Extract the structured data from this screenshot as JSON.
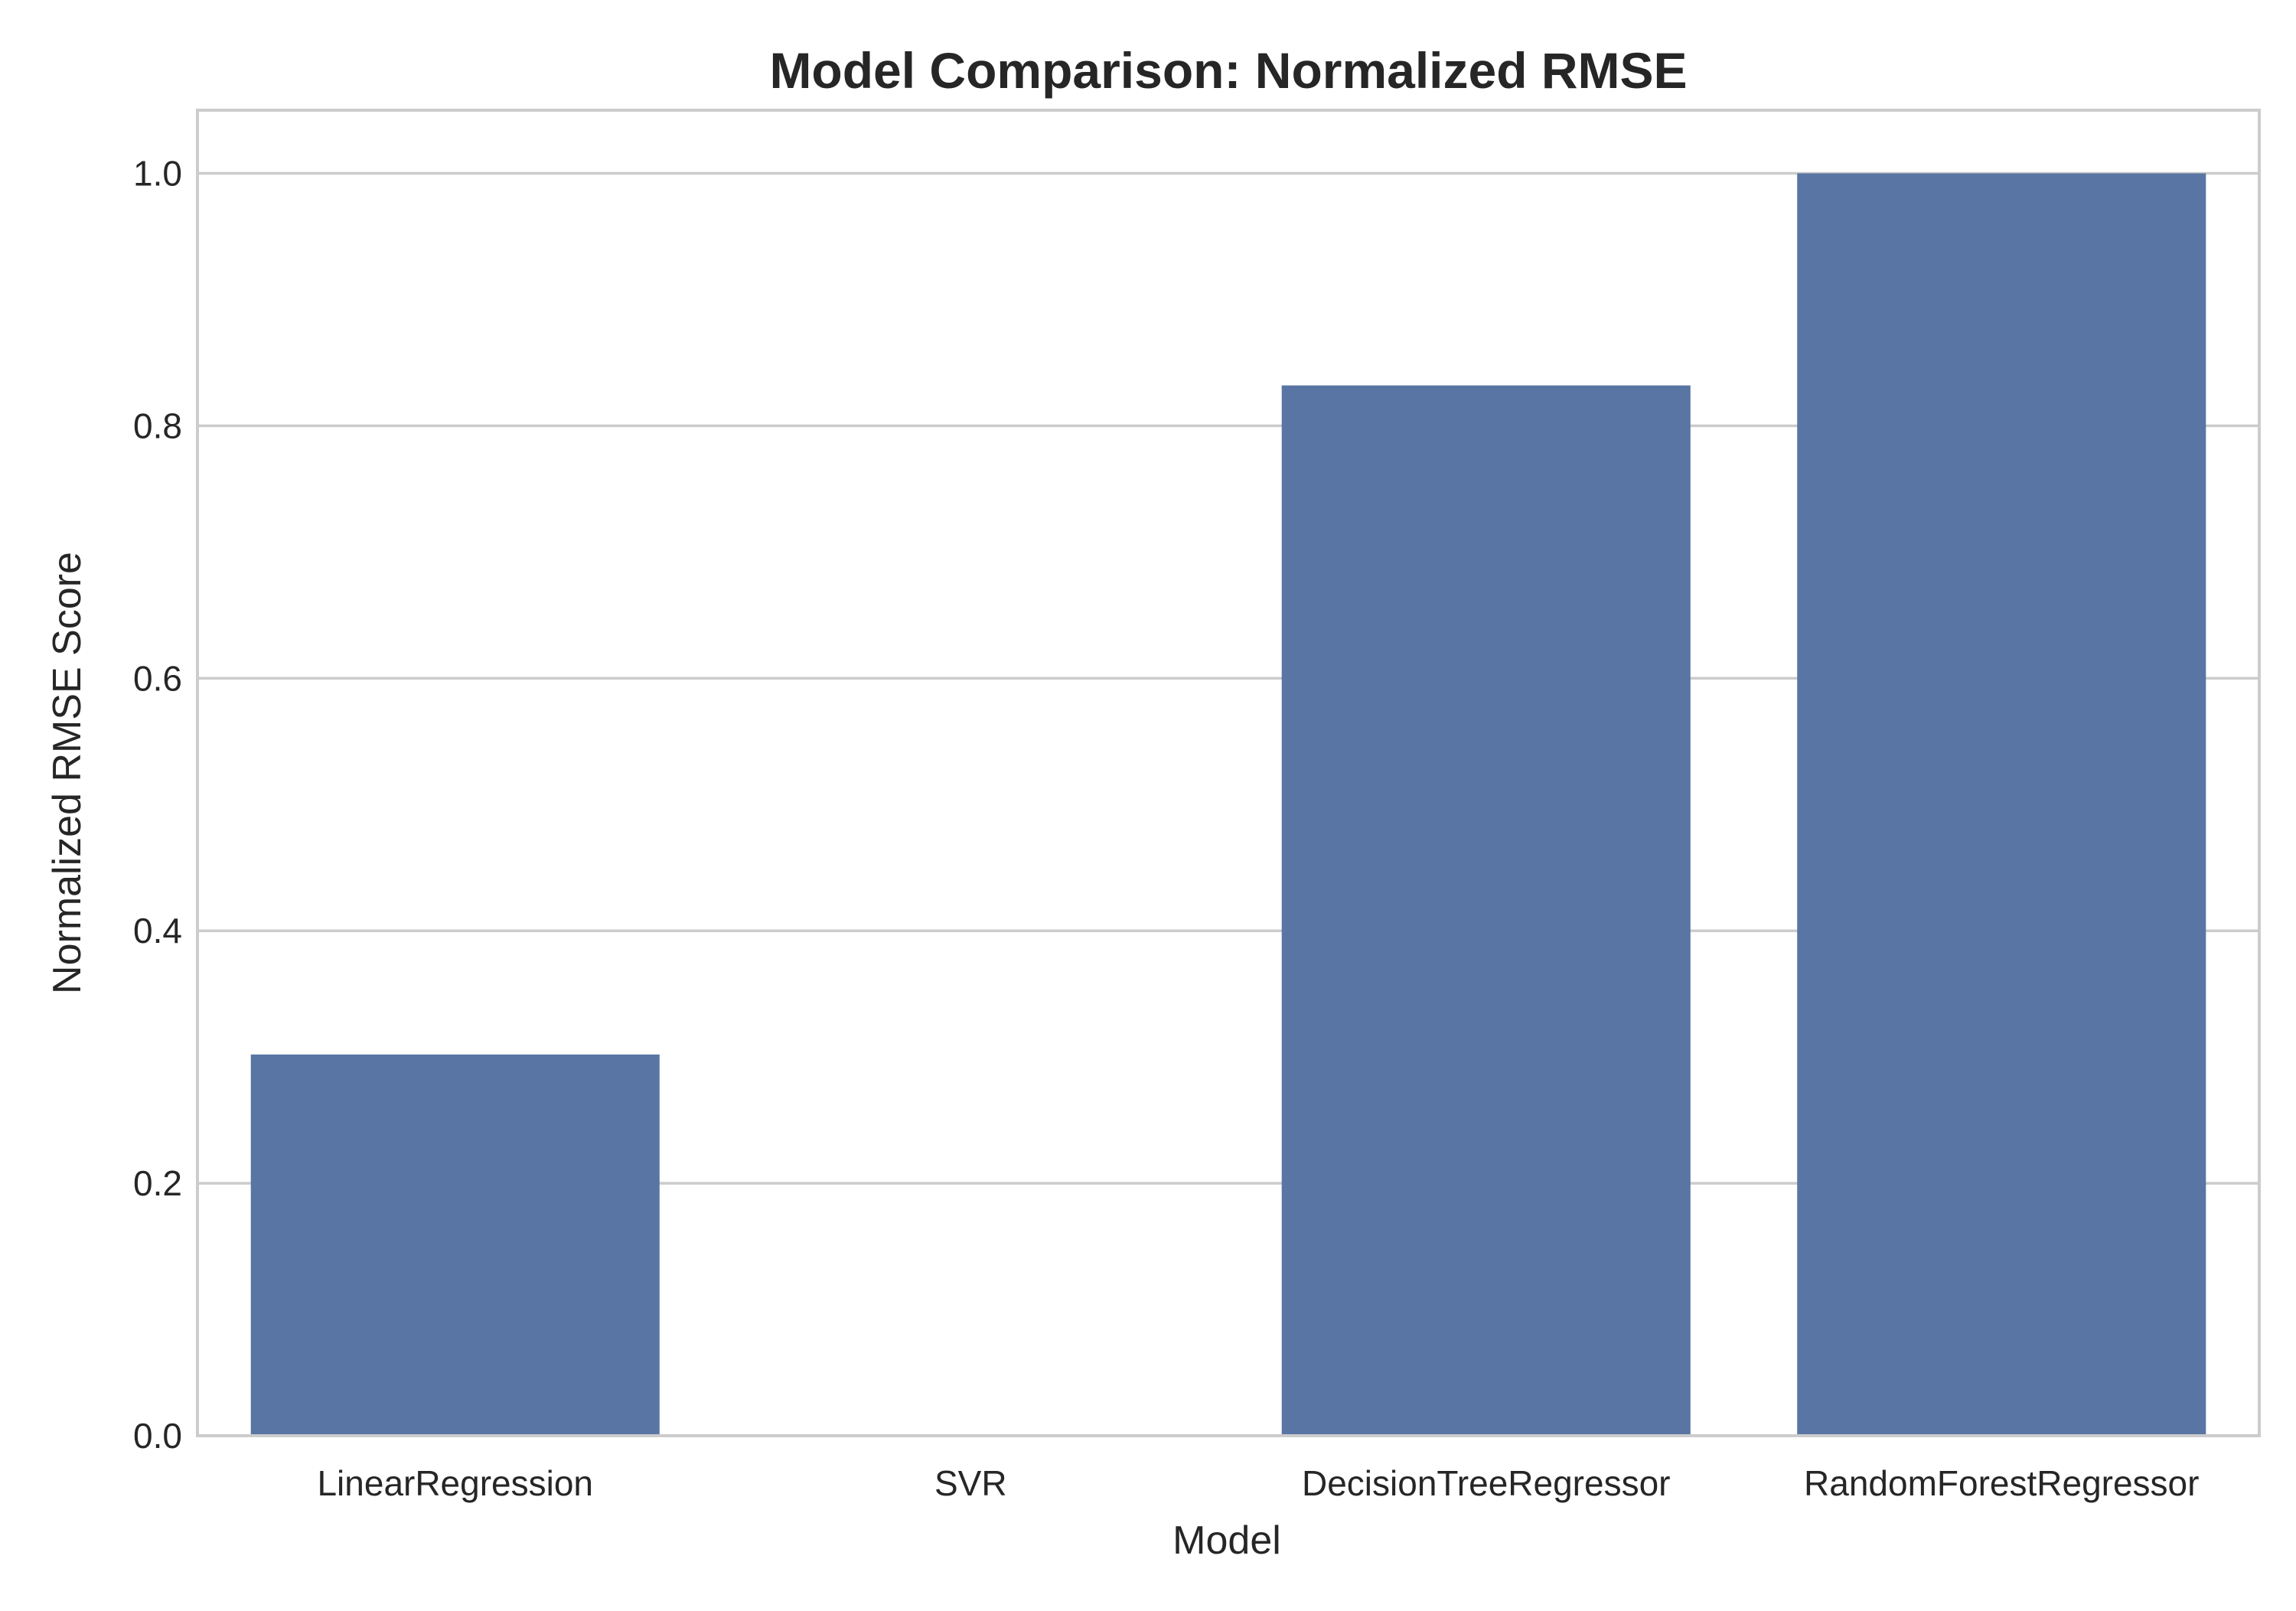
{
  "chart_data": {
    "type": "bar",
    "title": "Model Comparison: Normalized RMSE",
    "xlabel": "Model",
    "ylabel": "Normalized RMSE Score",
    "categories": [
      "LinearRegression",
      "SVR",
      "DecisionTreeRegressor",
      "RandomForestRegressor"
    ],
    "values": [
      0.302,
      0.0,
      0.832,
      1.0
    ],
    "ylim": [
      0,
      1.05
    ],
    "yticks": [
      "0.0",
      "0.2",
      "0.4",
      "0.6",
      "0.8",
      "1.0"
    ],
    "grid": "horizontal",
    "legend": "none",
    "colors": {
      "bar": "#5975a4",
      "grid": "#cccccc",
      "text": "#262626",
      "background": "#ffffff"
    }
  }
}
